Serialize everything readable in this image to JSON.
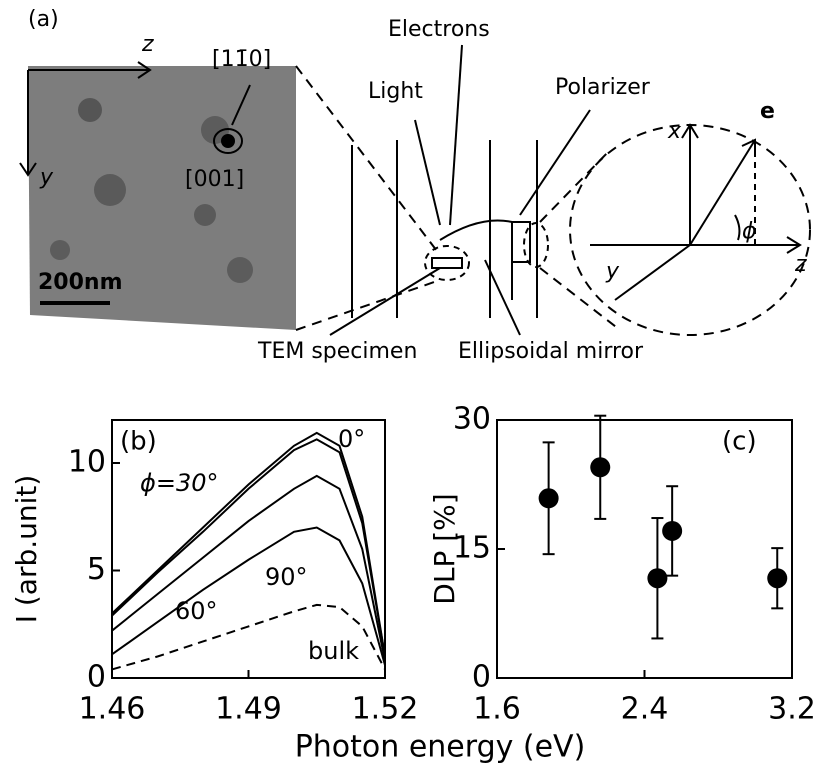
{
  "diagram": {
    "panel_label": "(a)",
    "image_z": "z",
    "image_y": "y",
    "direction_110": "[11̄0]",
    "direction_001": "[001]",
    "scale_bar": "200nm",
    "electrons": "Electrons",
    "light": "Light",
    "polarizer": "Polarizer",
    "e_label": "e",
    "axis_x": "x",
    "angle": "ϕ",
    "axis_y": "y",
    "axis_z": "z",
    "tem_specimen": "TEM specimen",
    "mirror": "Ellipsoidal mirror"
  },
  "chart_data": [
    {
      "type": "line",
      "panel_label": "(b)",
      "ylabel": "I (arb.unit)",
      "xlabel": "Photon energy (eV)",
      "x": [
        1.46,
        1.47,
        1.48,
        1.49,
        1.5,
        1.505,
        1.51,
        1.515,
        1.52
      ],
      "series": [
        {
          "name": "0°",
          "color": "#000000",
          "dashed": false,
          "values": [
            3.0,
            5.0,
            7.0,
            9.0,
            10.8,
            11.4,
            10.8,
            7.5,
            1.0
          ]
        },
        {
          "name": "ϕ=30°",
          "color": "#000000",
          "dashed": false,
          "values": [
            2.9,
            4.9,
            6.8,
            8.8,
            10.6,
            11.1,
            10.5,
            7.2,
            1.0
          ]
        },
        {
          "name": "60°",
          "color": "#000000",
          "dashed": false,
          "values": [
            2.2,
            3.9,
            5.6,
            7.3,
            8.8,
            9.4,
            8.8,
            6.0,
            0.8
          ]
        },
        {
          "name": "90°",
          "color": "#000000",
          "dashed": false,
          "values": [
            1.1,
            2.6,
            4.1,
            5.5,
            6.8,
            7.0,
            6.4,
            4.4,
            0.6
          ]
        },
        {
          "name": "bulk",
          "color": "#000000",
          "dashed": true,
          "values": [
            0.4,
            1.0,
            1.7,
            2.4,
            3.1,
            3.4,
            3.3,
            2.4,
            0.4
          ]
        }
      ],
      "xlim": [
        1.46,
        1.52
      ],
      "xticks": [
        1.46,
        1.49,
        1.52
      ],
      "ylim": [
        0,
        12
      ],
      "yticks": [
        0,
        5,
        10
      ]
    },
    {
      "type": "scatter",
      "panel_label": "(c)",
      "ylabel": "DLP [%]",
      "x": [
        1.88,
        2.16,
        2.47,
        2.55,
        3.12
      ],
      "series": [
        {
          "color": "#000000",
          "values": [
            20.9,
            24.5,
            11.6,
            17.1,
            11.6
          ],
          "errors": [
            6.5,
            6.0,
            7.0,
            5.2,
            3.5
          ]
        }
      ],
      "xlim": [
        1.6,
        3.2
      ],
      "xticks": [
        1.6,
        2.4,
        3.2
      ],
      "ylim": [
        0,
        30
      ],
      "yticks": [
        0,
        15,
        30
      ]
    }
  ]
}
